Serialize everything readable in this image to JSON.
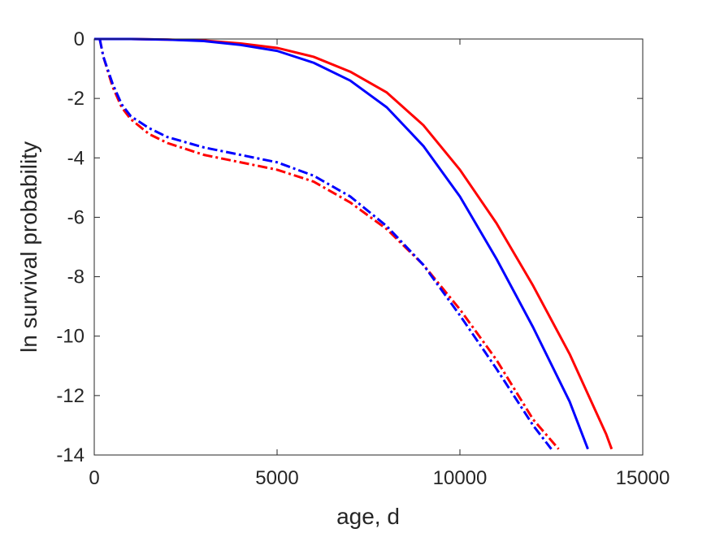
{
  "chart_data": {
    "type": "line",
    "title": "",
    "xlabel": "age, d",
    "ylabel": "ln survival probability",
    "xlim": [
      0,
      15000
    ],
    "ylim": [
      -14,
      0
    ],
    "xticks": [
      0,
      5000,
      10000,
      15000
    ],
    "yticks": [
      -14,
      -12,
      -10,
      -8,
      -6,
      -4,
      -2,
      0
    ],
    "xtick_labels": [
      "0",
      "5000",
      "10000",
      "15000"
    ],
    "ytick_labels": [
      "-14",
      "-12",
      "-10",
      "-8",
      "-6",
      "-4",
      "-2",
      "0"
    ],
    "grid": false,
    "legend": "none",
    "series": [
      {
        "color": "#ff0000",
        "style": "solid",
        "x": [
          0,
          1000,
          2000,
          3000,
          4000,
          5000,
          6000,
          7000,
          8000,
          9000,
          10000,
          11000,
          12000,
          13000,
          14000,
          14150
        ],
        "y": [
          0,
          0,
          -0.02,
          -0.05,
          -0.15,
          -0.3,
          -0.6,
          -1.1,
          -1.8,
          -2.9,
          -4.4,
          -6.2,
          -8.3,
          -10.6,
          -13.3,
          -13.8
        ]
      },
      {
        "color": "#0000ff",
        "style": "solid",
        "x": [
          0,
          1000,
          2000,
          3000,
          4000,
          5000,
          6000,
          7000,
          8000,
          9000,
          10000,
          11000,
          12000,
          13000,
          13500
        ],
        "y": [
          0,
          0,
          -0.02,
          -0.07,
          -0.2,
          -0.4,
          -0.8,
          -1.4,
          -2.3,
          -3.6,
          -5.3,
          -7.4,
          -9.7,
          -12.2,
          -13.8
        ]
      },
      {
        "color": "#ff0000",
        "style": "dashdot",
        "x": [
          150,
          250,
          500,
          750,
          1000,
          1500,
          2000,
          3000,
          4000,
          5000,
          6000,
          7000,
          8000,
          9000,
          10000,
          11000,
          12000,
          12700
        ],
        "y": [
          0,
          -0.6,
          -1.6,
          -2.3,
          -2.7,
          -3.2,
          -3.5,
          -3.9,
          -4.15,
          -4.4,
          -4.8,
          -5.5,
          -6.4,
          -7.6,
          -9.1,
          -10.8,
          -12.8,
          -13.8
        ]
      },
      {
        "color": "#0000ff",
        "style": "dashdot",
        "x": [
          150,
          250,
          500,
          750,
          1000,
          1500,
          2000,
          3000,
          4000,
          5000,
          6000,
          7000,
          8000,
          9000,
          10000,
          11000,
          12000,
          12500
        ],
        "y": [
          0,
          -0.6,
          -1.5,
          -2.2,
          -2.6,
          -3.0,
          -3.3,
          -3.65,
          -3.9,
          -4.15,
          -4.6,
          -5.3,
          -6.3,
          -7.6,
          -9.3,
          -11.1,
          -13.0,
          -13.8
        ]
      }
    ]
  }
}
